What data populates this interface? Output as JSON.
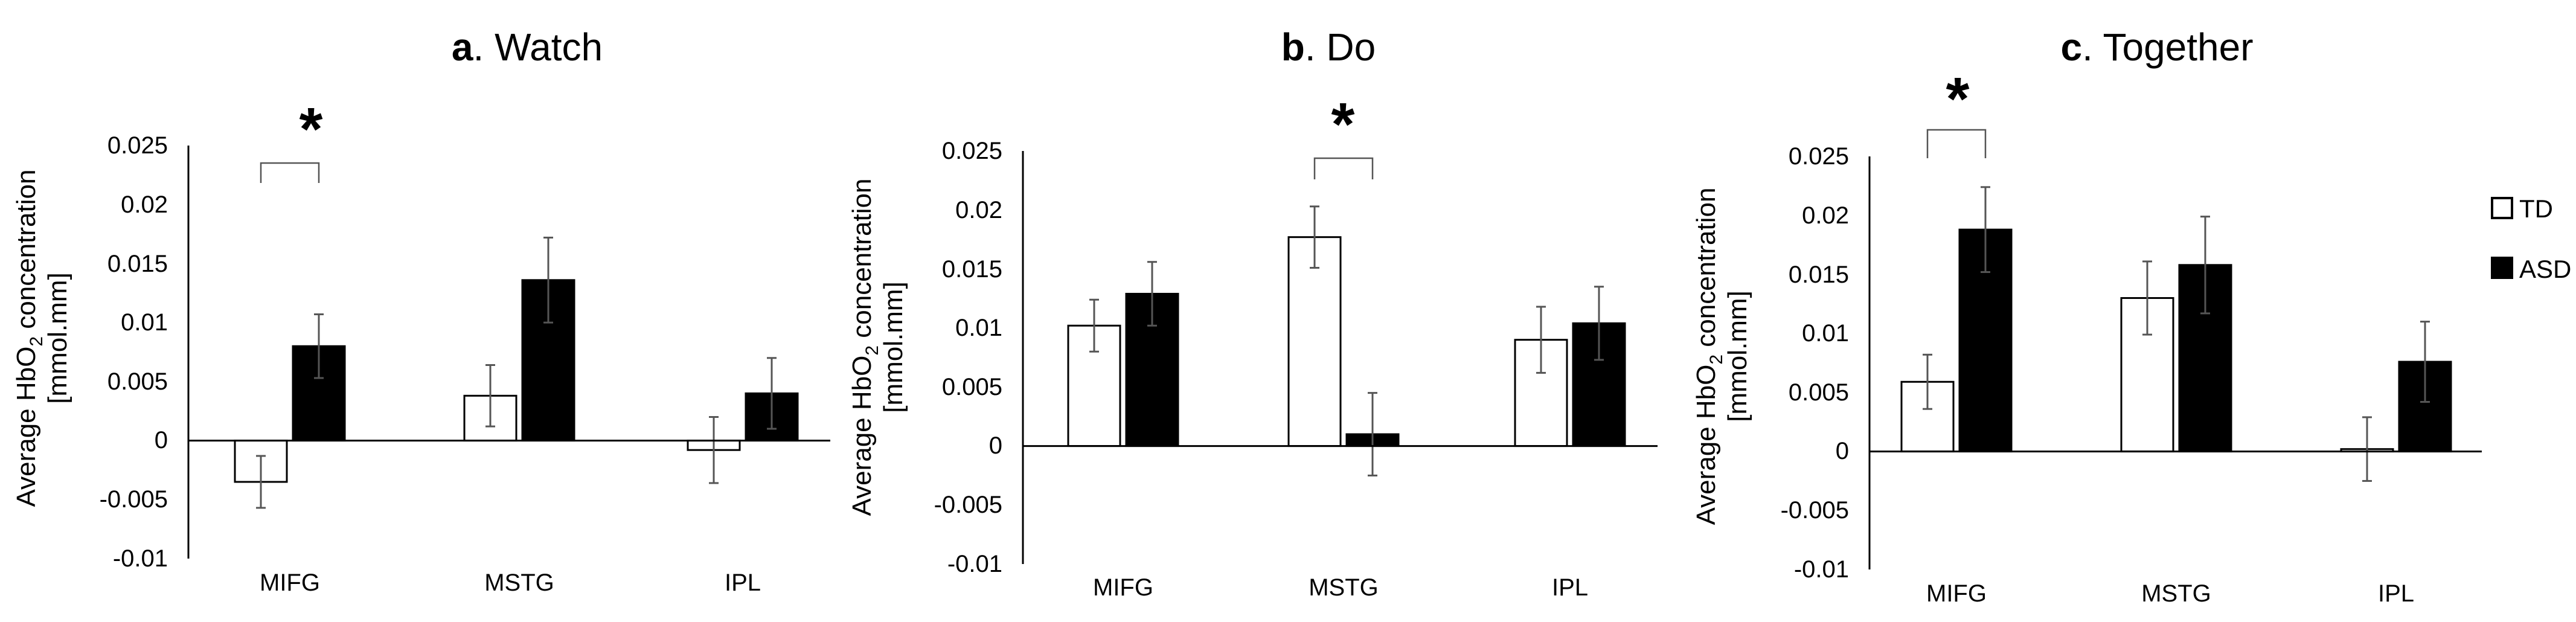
{
  "legend": {
    "items": [
      {
        "label": "TD",
        "color": "#ffffff"
      },
      {
        "label": "ASD",
        "color": "#000000"
      }
    ]
  },
  "chart_data": [
    {
      "type": "bar",
      "panel": "a",
      "title": "Watch",
      "categories": [
        "MIFG",
        "MSTG",
        "IPL"
      ],
      "ylabel_line1_pre": "Average HbO",
      "ylabel_sub": "2",
      "ylabel_line1_post": " concentration",
      "ylabel_line2": "[mmol.mm]",
      "ylim": [
        -0.01,
        0.025
      ],
      "yticks": [
        "0.025",
        "0.02",
        "0.015",
        "0.01",
        "0.005",
        "0",
        "-0.005",
        "-0.01"
      ],
      "series": [
        {
          "name": "TD",
          "values": [
            -0.0035,
            0.0038,
            -0.0008
          ],
          "errors": [
            0.0022,
            0.0026,
            0.0028
          ]
        },
        {
          "name": "ASD",
          "values": [
            0.008,
            0.0136,
            0.004
          ],
          "errors": [
            0.0027,
            0.0036,
            0.003
          ]
        }
      ],
      "significance": {
        "label": "*",
        "category": "MIFG"
      }
    },
    {
      "type": "bar",
      "panel": "b",
      "title": "Do",
      "categories": [
        "MIFG",
        "MSTG",
        "IPL"
      ],
      "ylabel_line1_pre": "Average HbO",
      "ylabel_sub": "2",
      "ylabel_line1_post": " concentration",
      "ylabel_line2": "[mmol.mm]",
      "ylim": [
        -0.01,
        0.025
      ],
      "yticks": [
        "0.025",
        "0.02",
        "0.015",
        "0.01",
        "0.005",
        "0",
        "-0.005",
        "-0.01"
      ],
      "series": [
        {
          "name": "TD",
          "values": [
            0.0102,
            0.0177,
            0.009
          ],
          "errors": [
            0.0022,
            0.0026,
            0.0028
          ]
        },
        {
          "name": "ASD",
          "values": [
            0.0129,
            0.001,
            0.0104
          ],
          "errors": [
            0.0027,
            0.0035,
            0.0031
          ]
        }
      ],
      "significance": {
        "label": "*",
        "category": "MSTG"
      }
    },
    {
      "type": "bar",
      "panel": "c",
      "title": "Together",
      "categories": [
        "MIFG",
        "MSTG",
        "IPL"
      ],
      "ylabel_line1_pre": "Average HbO",
      "ylabel_sub": "2",
      "ylabel_line1_post": " concentration",
      "ylabel_line2": "[mmol.mm]",
      "ylim": [
        -0.01,
        0.025
      ],
      "yticks": [
        "0.025",
        "0.02",
        "0.015",
        "0.01",
        "0.005",
        "0",
        "-0.005",
        "-0.01"
      ],
      "series": [
        {
          "name": "TD",
          "values": [
            0.0059,
            0.013,
            0.0002
          ],
          "errors": [
            0.0023,
            0.0031,
            0.0027
          ]
        },
        {
          "name": "ASD",
          "values": [
            0.0188,
            0.0158,
            0.0076
          ],
          "errors": [
            0.0036,
            0.0041,
            0.0034
          ]
        }
      ],
      "significance": {
        "label": "*",
        "category": "MIFG"
      }
    }
  ]
}
